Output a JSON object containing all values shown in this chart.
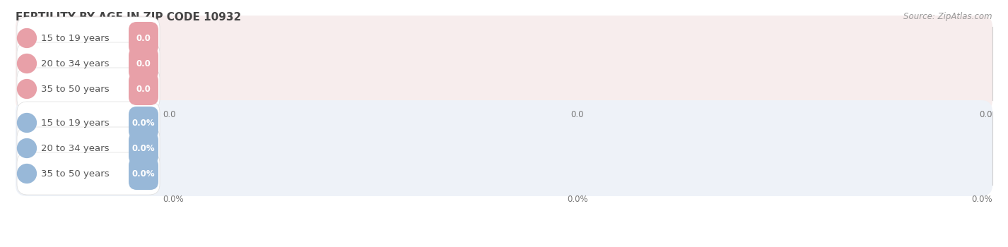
{
  "title": "FERTILITY BY AGE IN ZIP CODE 10932",
  "source": "Source: ZipAtlas.com",
  "top_section": {
    "categories": [
      "15 to 19 years",
      "20 to 34 years",
      "35 to 50 years"
    ],
    "value_labels": [
      "0.0",
      "0.0",
      "0.0"
    ],
    "bar_color": "#e8a0a8",
    "pill_bg_color": "#f7eded",
    "circle_color": "#e8a0a8"
  },
  "bottom_section": {
    "categories": [
      "15 to 19 years",
      "20 to 34 years",
      "35 to 50 years"
    ],
    "value_labels": [
      "0.0%",
      "0.0%",
      "0.0%"
    ],
    "bar_color": "#98b8d8",
    "pill_bg_color": "#eef2f8",
    "circle_color": "#98b8d8"
  },
  "top_axis_labels": [
    "0.0",
    "0.0",
    "0.0"
  ],
  "bottom_axis_labels": [
    "0.0%",
    "0.0%",
    "0.0%"
  ],
  "background_color": "#ffffff",
  "row_bg_even": "#f7f7f7",
  "row_bg_odd": "#efefef",
  "title_fontsize": 11,
  "label_fontsize": 9.5,
  "badge_fontsize": 8.5,
  "tick_fontsize": 8.5,
  "source_fontsize": 8.5,
  "grid_color": "#cccccc"
}
